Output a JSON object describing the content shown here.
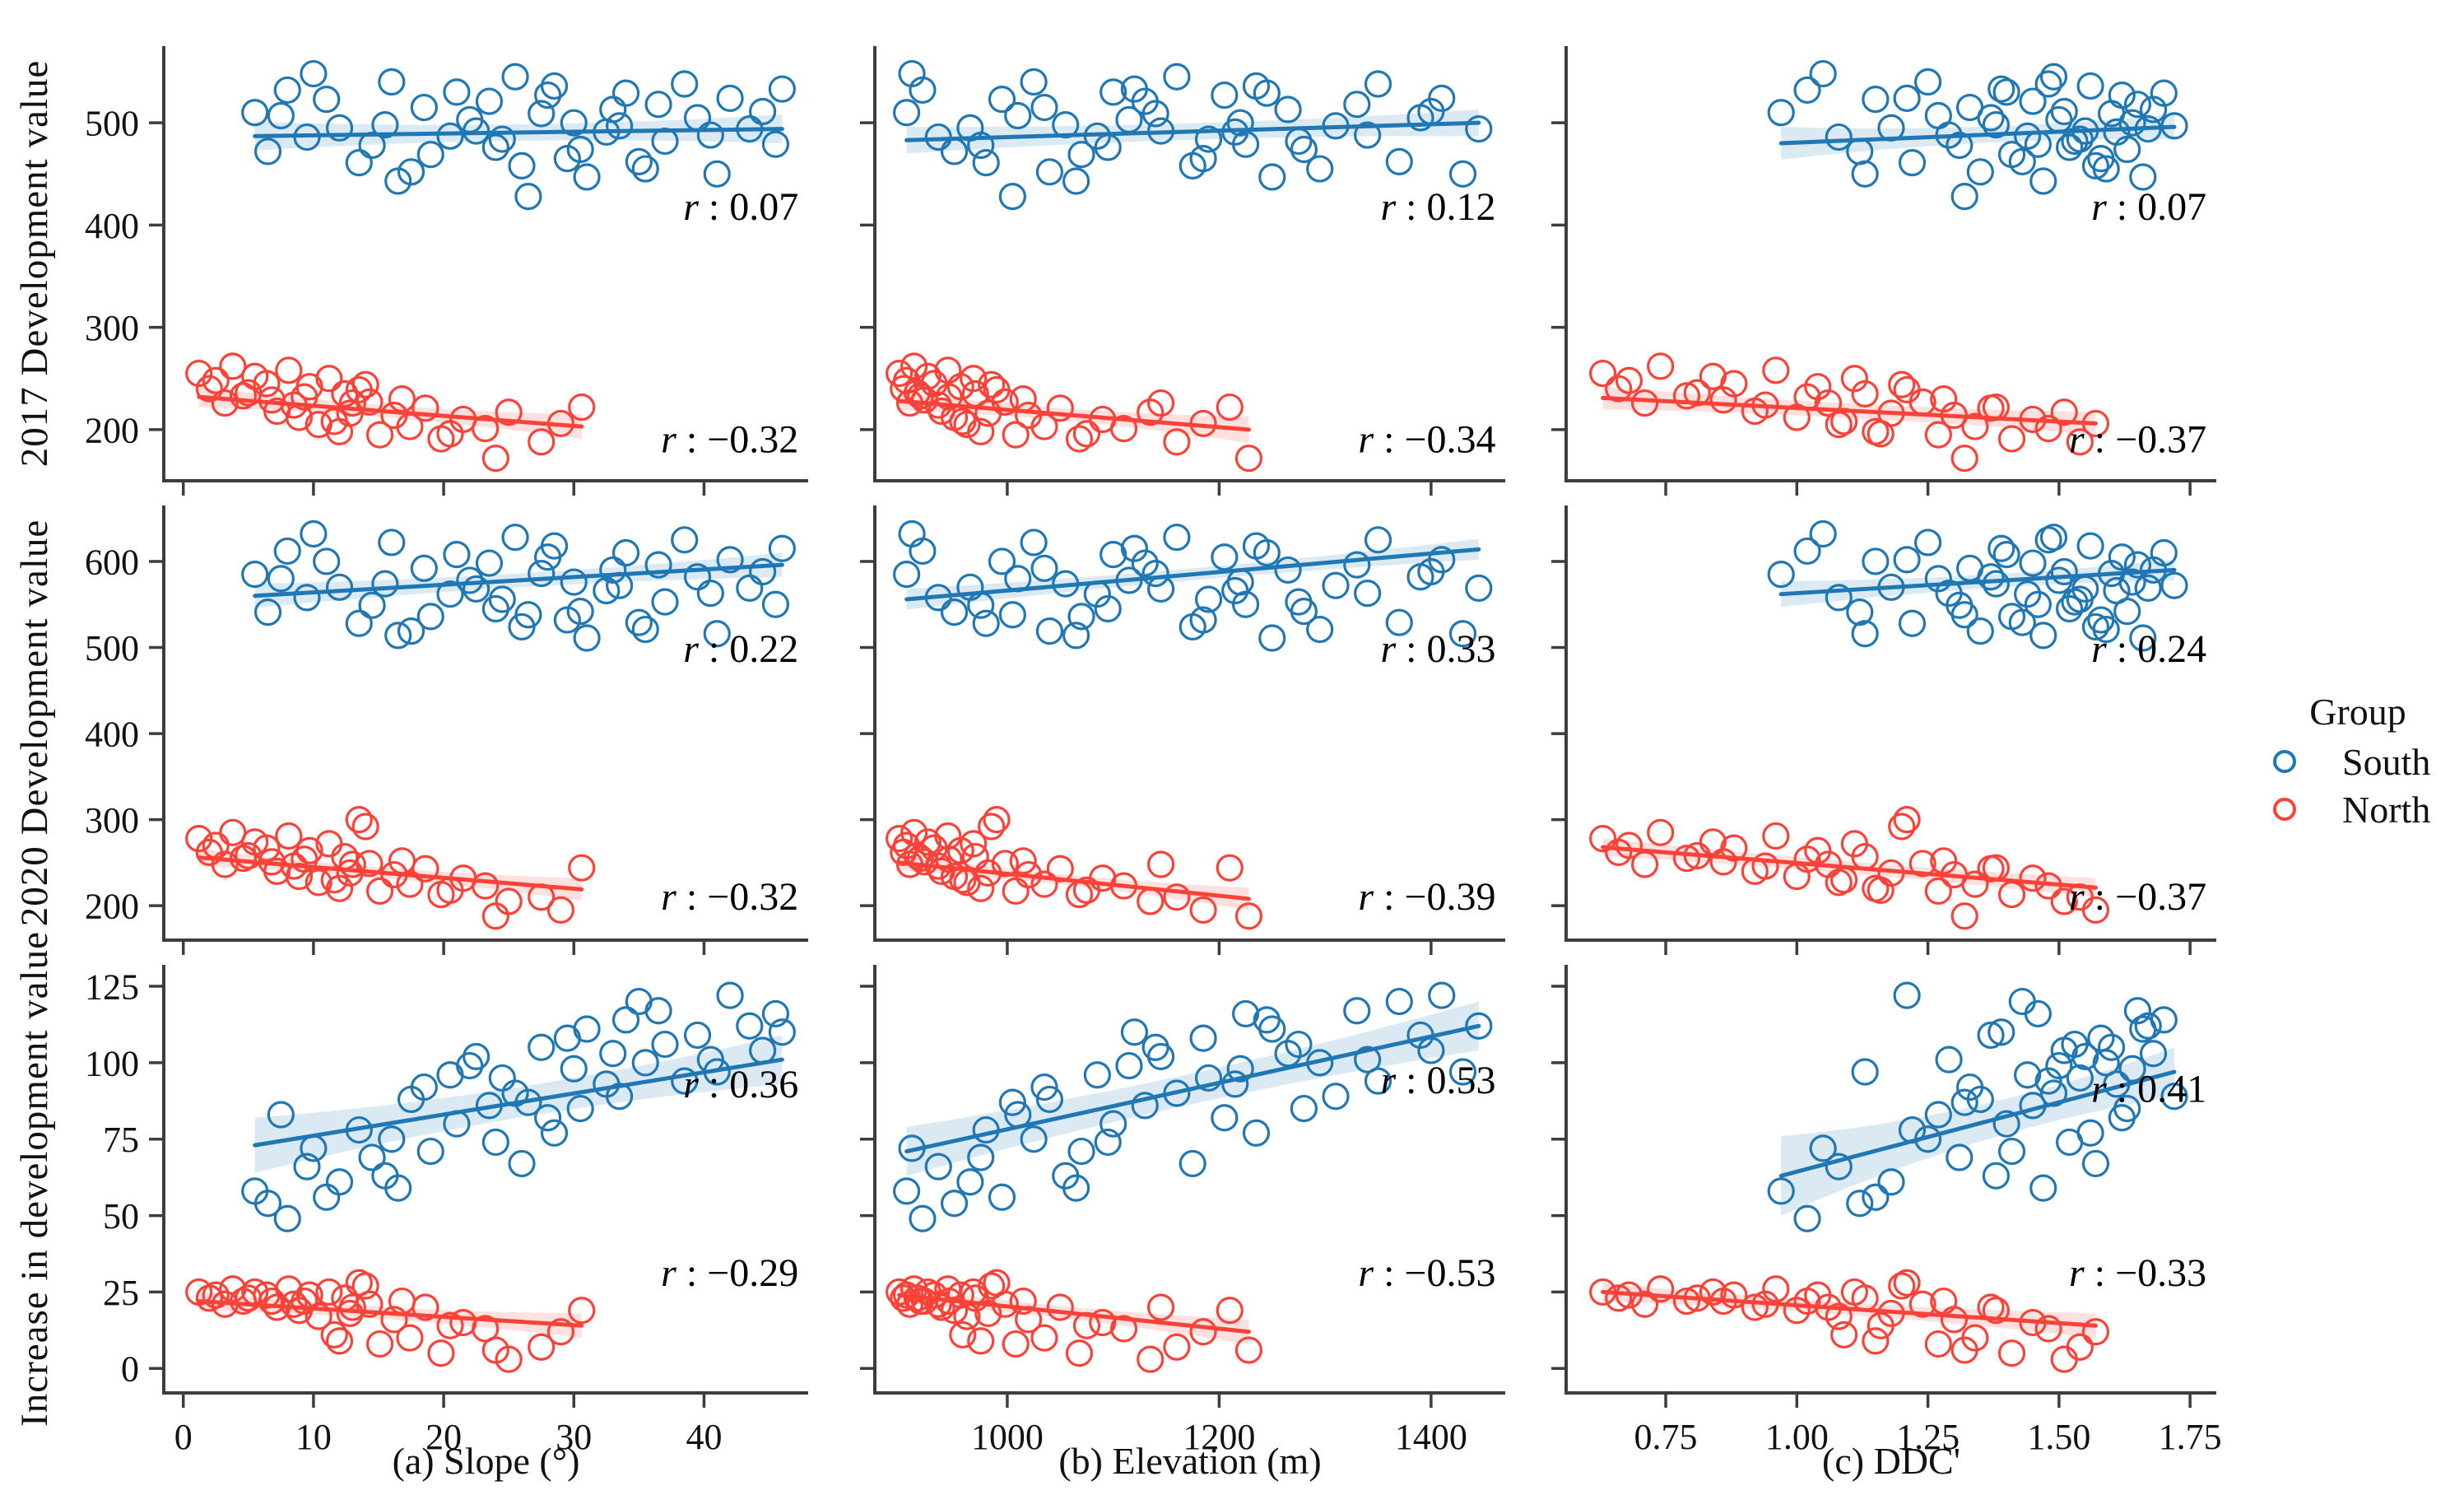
{
  "chart_data": {
    "type": "scatter",
    "layout": "3x3-grid-shared-axes",
    "palette": {
      "south": "#1f77b4",
      "north": "#fb4238",
      "axis": "#3d3d3d",
      "text": "#111111"
    },
    "legend": {
      "title": "Group",
      "position": "right",
      "items": [
        {
          "label": "South",
          "color_key": "south"
        },
        {
          "label": "North",
          "color_key": "north"
        }
      ]
    },
    "rows": [
      {
        "key": "dev2017",
        "ylabel": "2017 Development value",
        "ylim": [
          150,
          575
        ],
        "ytick_values": [
          200,
          300,
          400,
          500
        ],
        "ytick_labels": [
          "200",
          "300",
          "400",
          "500"
        ]
      },
      {
        "key": "dev2020",
        "ylabel": "2020 Development value",
        "ylim": [
          160,
          665
        ],
        "ytick_values": [
          200,
          300,
          400,
          500,
          600
        ],
        "ytick_labels": [
          "200",
          "300",
          "400",
          "500",
          "600"
        ]
      },
      {
        "key": "increase",
        "ylabel": "Increase in development value",
        "ylim": [
          -8,
          132
        ],
        "ytick_values": [
          0,
          25,
          50,
          75,
          100,
          125
        ],
        "ytick_labels": [
          "0",
          "25",
          "50",
          "75",
          "100",
          "125"
        ]
      }
    ],
    "cols": [
      {
        "key": "slope",
        "caption": "(a)  Slope (°)",
        "xlim": [
          -1.5,
          48
        ],
        "xtick_values": [
          0,
          10,
          20,
          30,
          40
        ],
        "xtick_labels": [
          "0",
          "10",
          "20",
          "30",
          "40"
        ]
      },
      {
        "key": "elevation",
        "caption": "(b)  Elevation (m)",
        "xlim": [
          875,
          1470
        ],
        "xtick_values": [
          1000,
          1200,
          1400
        ],
        "xtick_labels": [
          "1000",
          "1200",
          "1400"
        ]
      },
      {
        "key": "ddc",
        "caption": "(c) DDC'",
        "xlim": [
          0.56,
          1.8
        ],
        "xtick_values": [
          0.75,
          1.0,
          1.25,
          1.5,
          1.75
        ],
        "xtick_labels": [
          "0.75",
          "1.00",
          "1.25",
          "1.50",
          "1.75"
        ]
      }
    ],
    "groups": {
      "south": {
        "x": {
          "slope": [
            5.5,
            8,
            9.5,
            6.5,
            10,
            12,
            13.5,
            11,
            7.5,
            14.5,
            16,
            17.5,
            15.5,
            18.5,
            19,
            20.5,
            21,
            16.5,
            22,
            23.5,
            24,
            22.5,
            25.5,
            26,
            27.5,
            24.5,
            28,
            29.5,
            30,
            28.5,
            31,
            32.5,
            33,
            30.5,
            34,
            35.5,
            33.5,
            36.5,
            37,
            38.5,
            35,
            39.5,
            40.5,
            42,
            41,
            43.5,
            44.5,
            45.5,
            46,
            26.5
          ],
          "elevation": [
            905,
            920,
            935,
            950,
            910,
            965,
            980,
            995,
            1010,
            975,
            1025,
            1040,
            1055,
            1035,
            1070,
            1085,
            1100,
            1065,
            1115,
            1130,
            1095,
            1145,
            1160,
            1175,
            1140,
            1190,
            1205,
            1185,
            1220,
            1235,
            1250,
            1215,
            1265,
            1280,
            1245,
            1295,
            1310,
            1330,
            1275,
            1350,
            1370,
            1390,
            1340,
            1410,
            1430,
            1445,
            1400,
            1225,
            1120,
            1005
          ],
          "ddc": [
            0.97,
            1.02,
            1.08,
            1.12,
            1.05,
            1.18,
            1.22,
            1.15,
            1.27,
            1.31,
            1.25,
            1.35,
            1.38,
            1.33,
            1.41,
            1.44,
            1.4,
            1.47,
            1.5,
            1.45,
            1.52,
            1.55,
            1.49,
            1.57,
            1.6,
            1.54,
            1.62,
            1.58,
            1.64,
            1.56,
            1.66,
            1.61,
            1.68,
            1.63,
            1.7,
            1.59,
            1.72,
            1.65,
            1.53,
            1.48,
            1.43,
            1.37,
            1.29,
            1.21,
            1.13,
            1.67,
            1.51,
            1.46,
            1.39,
            1.32
          ]
        },
        "y": {
          "dev2017": [
            510,
            532,
            486,
            472,
            548,
            495,
            461,
            523,
            507,
            478,
            540,
            452,
            498,
            515,
            469,
            487,
            530,
            443,
            503,
            521,
            476,
            492,
            545,
            458,
            509,
            484,
            527,
            465,
            500,
            536,
            447,
            491,
            513,
            474,
            529,
            455,
            497,
            518,
            482,
            538,
            462,
            505,
            488,
            524,
            450,
            494,
            511,
            479,
            533,
            428
          ],
          "dev2020": [
            585,
            612,
            558,
            541,
            632,
            570,
            528,
            600,
            580,
            549,
            622,
            519,
            574,
            592,
            536,
            562,
            608,
            514,
            578,
            598,
            545,
            568,
            628,
            524,
            586,
            556,
            605,
            532,
            576,
            618,
            511,
            566,
            590,
            542,
            610,
            521,
            572,
            596,
            553,
            625,
            529,
            582,
            563,
            602,
            516,
            569,
            588,
            550,
            615,
            538
          ],
          "increase": [
            58,
            49,
            66,
            54,
            72,
            61,
            78,
            56,
            83,
            69,
            75,
            88,
            63,
            92,
            71,
            96,
            80,
            59,
            99,
            86,
            74,
            102,
            90,
            67,
            105,
            95,
            82,
            108,
            98,
            77,
            111,
            93,
            103,
            85,
            114,
            100,
            89,
            117,
            106,
            94,
            120,
            109,
            101,
            122,
            97,
            112,
            104,
            116,
            110,
            87
          ]
        }
      },
      "north": {
        "x": {
          "slope": [
            1.2,
            2.5,
            3.8,
            2,
            4.6,
            5.5,
            3.2,
            6.4,
            7.2,
            5,
            8.1,
            8.9,
            6.8,
            9.7,
            10.4,
            8.5,
            11.2,
            12,
            9.3,
            12.8,
            13.5,
            11.6,
            14.3,
            15.1,
            12.4,
            16.2,
            17.4,
            14,
            18.6,
            19.8,
            21.5,
            16.8,
            23.2,
            25,
            27.5,
            29,
            30.6,
            24,
            20.5,
            13
          ],
          "elevation": [
            898,
            905,
            912,
            902,
            918,
            925,
            908,
            931,
            938,
            915,
            944,
            950,
            922,
            956,
            962,
            935,
            968,
            975,
            945,
            982,
            990,
            958,
            998,
            1008,
            970,
            1020,
            1035,
            985,
            1050,
            1068,
            1090,
            1015,
            1110,
            1135,
            1160,
            1185,
            1210,
            1228,
            1075,
            1145
          ],
          "ddc": [
            0.63,
            0.68,
            0.74,
            0.66,
            0.79,
            0.84,
            0.71,
            0.88,
            0.92,
            0.81,
            0.96,
            1,
            0.86,
            1.04,
            1.08,
            0.94,
            1.11,
            1.15,
            1.02,
            1.18,
            1.21,
            1.09,
            1.24,
            1.27,
            1.13,
            1.3,
            1.34,
            1.2,
            1.37,
            1.41,
            1.45,
            1.28,
            1.48,
            1.51,
            1.54,
            1.57,
            1.38,
            1.32,
            1.16,
            1.06
          ],
          "slope_range": [
            1.2,
            30.6
          ],
          "elevation_range": [
            898,
            1228
          ],
          "ddc_range": [
            0.63,
            1.57
          ]
        },
        "y": {
          "dev2017": [
            255,
            248,
            262,
            240,
            233,
            252,
            226,
            245,
            218,
            236,
            258,
            212,
            229,
            242,
            205,
            224,
            250,
            198,
            232,
            216,
            239,
            208,
            227,
            195,
            235,
            214,
            203,
            244,
            221,
            191,
            210,
            230,
            201,
            217,
            188,
            206,
            222,
            172,
            196,
            226
          ],
          "dev2020": [
            278,
            270,
            285,
            262,
            255,
            274,
            248,
            267,
            240,
            258,
            281,
            234,
            251,
            264,
            227,
            246,
            272,
            220,
            254,
            238,
            300,
            230,
            249,
            217,
            257,
            236,
            225,
            292,
            243,
            213,
            232,
            252,
            223,
            205,
            210,
            195,
            244,
            188,
            218,
            248
          ],
          "increase": [
            25,
            24,
            26,
            23,
            22,
            25,
            21,
            24,
            20,
            23,
            26,
            19,
            22,
            24,
            17,
            21,
            25,
            9,
            22,
            18,
            28,
            11,
            21,
            8,
            23,
            16,
            10,
            27,
            20,
            5,
            15,
            22,
            13,
            3,
            7,
            12,
            19,
            6,
            14,
            20
          ]
        }
      }
    },
    "panels": [
      {
        "id": "a-2017",
        "row": 0,
        "col": 0,
        "south": {
          "r_label": "0.07",
          "r_frac": 0.4,
          "trend_x": [
            5.5,
            46
          ],
          "trend_y": [
            487,
            494
          ],
          "band": [
            14,
            8,
            14
          ]
        },
        "north": {
          "r_label": "−0.32",
          "r_frac": 0.935,
          "trend_x": [
            1.2,
            30.6
          ],
          "trend_y": [
            232,
            203
          ],
          "band": [
            10,
            6,
            12
          ]
        }
      },
      {
        "id": "b-2017",
        "row": 0,
        "col": 1,
        "south": {
          "r_label": "0.12",
          "r_frac": 0.4,
          "trend_x": [
            905,
            1445
          ],
          "trend_y": [
            483,
            500
          ],
          "band": [
            13,
            8,
            13
          ]
        },
        "north": {
          "r_label": "−0.34",
          "r_frac": 0.935,
          "trend_x": [
            898,
            1228
          ],
          "trend_y": [
            228,
            200
          ],
          "band": [
            9,
            6,
            13
          ]
        }
      },
      {
        "id": "c-2017",
        "row": 0,
        "col": 2,
        "south": {
          "r_label": "0.07",
          "r_frac": 0.4,
          "trend_x": [
            0.97,
            1.72
          ],
          "trend_y": [
            480,
            496
          ],
          "band": [
            16,
            8,
            12
          ]
        },
        "north": {
          "r_label": "−0.37",
          "r_frac": 0.935,
          "trend_x": [
            0.63,
            1.57
          ],
          "trend_y": [
            231,
            206
          ],
          "band": [
            11,
            7,
            11
          ]
        }
      },
      {
        "id": "a-2020",
        "row": 1,
        "col": 0,
        "south": {
          "r_label": "0.22",
          "r_frac": 0.36,
          "trend_x": [
            5.5,
            46
          ],
          "trend_y": [
            560,
            596
          ],
          "band": [
            14,
            8,
            14
          ]
        },
        "north": {
          "r_label": "−0.32",
          "r_frac": 0.93,
          "trend_x": [
            1.2,
            30.6
          ],
          "trend_y": [
            256,
            219
          ],
          "band": [
            10,
            6,
            13
          ]
        }
      },
      {
        "id": "b-2020",
        "row": 1,
        "col": 1,
        "south": {
          "r_label": "0.33",
          "r_frac": 0.36,
          "trend_x": [
            905,
            1445
          ],
          "trend_y": [
            556,
            614
          ],
          "band": [
            12,
            7,
            12
          ]
        },
        "north": {
          "r_label": "−0.39",
          "r_frac": 0.93,
          "trend_x": [
            898,
            1228
          ],
          "trend_y": [
            250,
            208
          ],
          "band": [
            9,
            6,
            13
          ]
        }
      },
      {
        "id": "c-2020",
        "row": 1,
        "col": 2,
        "south": {
          "r_label": "0.24",
          "r_frac": 0.36,
          "trend_x": [
            0.97,
            1.72
          ],
          "trend_y": [
            562,
            590
          ],
          "band": [
            15,
            8,
            12
          ]
        },
        "north": {
          "r_label": "−0.37",
          "r_frac": 0.93,
          "trend_x": [
            0.63,
            1.57
          ],
          "trend_y": [
            268,
            221
          ],
          "band": [
            10,
            7,
            11
          ]
        }
      },
      {
        "id": "a-increase",
        "row": 2,
        "col": 0,
        "south": {
          "r_label": "0.36",
          "r_frac": 0.31,
          "trend_x": [
            5.5,
            46
          ],
          "trend_y": [
            73,
            101
          ],
          "band": [
            9,
            5,
            8
          ]
        },
        "north": {
          "r_label": "−0.29",
          "r_frac": 0.75,
          "trend_x": [
            1.2,
            30.6
          ],
          "trend_y": [
            22,
            14
          ],
          "band": [
            3,
            2,
            4
          ]
        }
      },
      {
        "id": "b-increase",
        "row": 2,
        "col": 1,
        "south": {
          "r_label": "0.53",
          "r_frac": 0.3,
          "trend_x": [
            905,
            1445
          ],
          "trend_y": [
            71,
            112
          ],
          "band": [
            8,
            5,
            8
          ]
        },
        "north": {
          "r_label": "−0.53",
          "r_frac": 0.75,
          "trend_x": [
            898,
            1228
          ],
          "trend_y": [
            24,
            12
          ],
          "band": [
            2.5,
            2,
            4
          ]
        }
      },
      {
        "id": "c-increase",
        "row": 2,
        "col": 2,
        "south": {
          "r_label": "0.41",
          "r_frac": 0.32,
          "trend_x": [
            0.97,
            1.72
          ],
          "trend_y": [
            63,
            97
          ],
          "band": [
            13,
            6,
            8
          ]
        },
        "north": {
          "r_label": "−0.33",
          "r_frac": 0.75,
          "trend_x": [
            0.63,
            1.57
          ],
          "trend_y": [
            25,
            14
          ],
          "band": [
            3,
            2,
            4
          ]
        }
      }
    ],
    "r_prefix": "r",
    "r_separator": " : "
  }
}
